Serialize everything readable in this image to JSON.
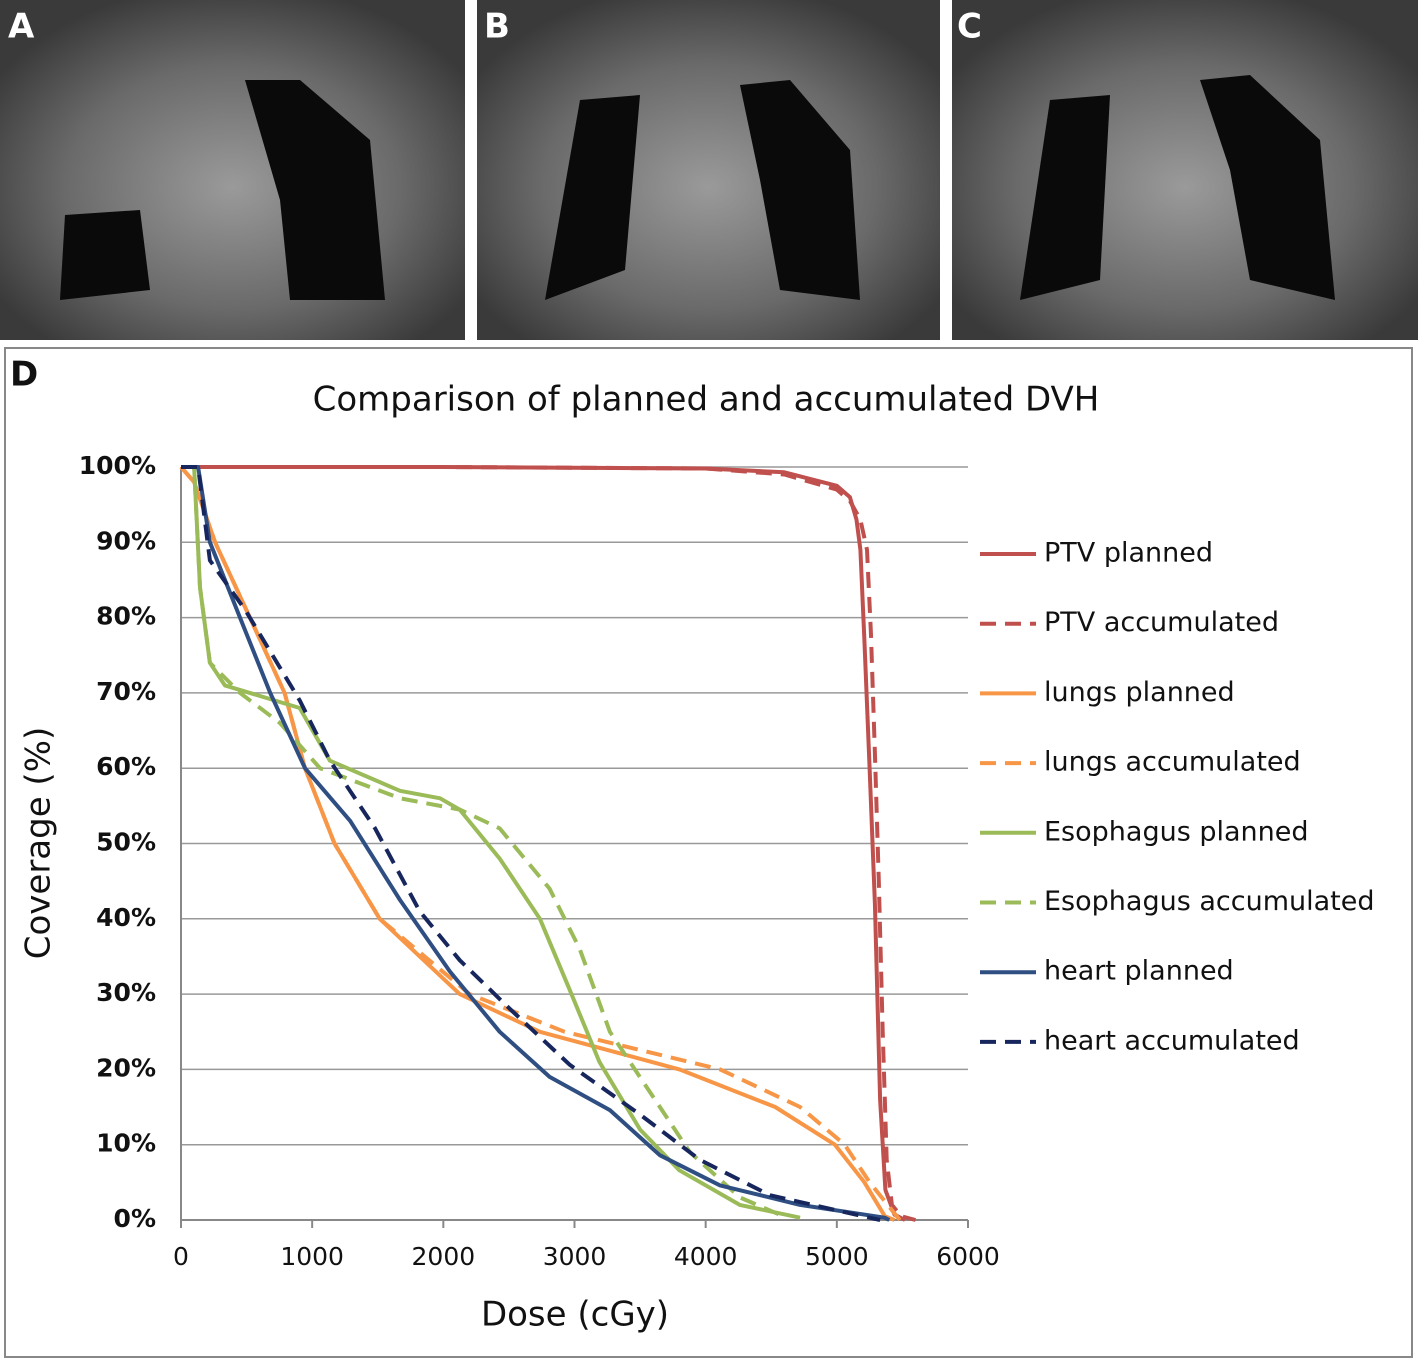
{
  "panel_labels": [
    "A",
    "B",
    "C",
    "D"
  ],
  "chart_data": {
    "type": "line",
    "title": "Comparison of planned and accumulated DVH",
    "x_label": "Dose (cGy)",
    "y_label": "Coverage (%)",
    "xlim": [
      0,
      6000
    ],
    "xticks": [
      0,
      1000,
      2000,
      3000,
      4000,
      5000,
      6000
    ],
    "ylim": [
      0,
      100
    ],
    "yticks": [
      {
        "value": 0,
        "label": "0%"
      },
      {
        "value": 10,
        "label": "10%"
      },
      {
        "value": 20,
        "label": "20%"
      },
      {
        "value": 30,
        "label": "30%"
      },
      {
        "value": 40,
        "label": "40%"
      },
      {
        "value": 50,
        "label": "50%"
      },
      {
        "value": 60,
        "label": "60%"
      },
      {
        "value": 70,
        "label": "70%"
      },
      {
        "value": 80,
        "label": "80%"
      },
      {
        "value": 90,
        "label": "90%"
      },
      {
        "value": 100,
        "label": "100%"
      }
    ],
    "grid": true,
    "legend": "right",
    "series": [
      {
        "name": "PTV planned",
        "color": "#c0504d",
        "dashed": false,
        "x": [
          0,
          2000,
          4000,
          4600,
          5000,
          5100,
          5150,
          5180,
          5210,
          5250,
          5290,
          5330,
          5370,
          5440,
          5520
        ],
        "values": [
          100,
          100,
          99.8,
          99.3,
          97.5,
          96,
          93,
          89,
          77,
          60,
          42,
          16,
          4,
          0.7,
          0
        ]
      },
      {
        "name": "PTV accumulated",
        "color": "#c0504d",
        "dashed": true,
        "x": [
          0,
          2000,
          4000,
          4600,
          5000,
          5100,
          5180,
          5230,
          5260,
          5290,
          5320,
          5350,
          5380,
          5420,
          5490,
          5600
        ],
        "values": [
          100,
          100,
          99.8,
          99,
          97,
          95.5,
          93,
          89,
          78,
          62,
          45,
          25,
          8,
          2,
          0.5,
          0
        ]
      },
      {
        "name": "lungs planned",
        "color": "#f79646",
        "dashed": false,
        "x": [
          0,
          100,
          260,
          525,
          790,
          945,
          1170,
          1515,
          2125,
          2736,
          3800,
          4530,
          4985,
          5210,
          5366,
          5440
        ],
        "values": [
          100,
          98,
          90,
          80,
          70,
          60,
          50,
          40,
          30,
          25,
          20,
          15,
          10,
          5,
          0.5,
          0
        ]
      },
      {
        "name": "lungs accumulated",
        "color": "#f79646",
        "dashed": true,
        "x": [
          0,
          100,
          260,
          525,
          790,
          945,
          1170,
          1515,
          2200,
          2925,
          4110,
          4720,
          5060,
          5250,
          5480
        ],
        "values": [
          100,
          98,
          90,
          80,
          70,
          60,
          50,
          40,
          30,
          25,
          20,
          15,
          10,
          5,
          0
        ]
      },
      {
        "name": "Esophagus planned",
        "color": "#9bbb59",
        "dashed": false,
        "x": [
          0,
          100,
          145,
          220,
          335,
          905,
          1135,
          1670,
          1975,
          2125,
          2430,
          2736,
          2965,
          3190,
          3500,
          3800,
          4260,
          4720
        ],
        "values": [
          100,
          100,
          84,
          74,
          71,
          68,
          61,
          57,
          56,
          54.5,
          48,
          40,
          30.5,
          21,
          12,
          6.6,
          2,
          0.3
        ]
      },
      {
        "name": "Esophagus accumulated",
        "color": "#9bbb59",
        "dashed": true,
        "x": [
          0,
          100,
          145,
          220,
          450,
          755,
          1060,
          1670,
          2125,
          2430,
          2810,
          3040,
          3270,
          3575,
          3880,
          4260,
          4565
        ],
        "values": [
          100,
          100,
          84,
          74,
          70,
          66,
          60,
          56,
          54.5,
          52,
          44,
          36,
          25,
          17,
          9,
          3,
          0.7
        ]
      },
      {
        "name": "heart planned",
        "color": "#2f4f82",
        "dashed": false,
        "x": [
          0,
          130,
          220,
          450,
          680,
          945,
          1290,
          1670,
          2050,
          2430,
          2810,
          3270,
          3650,
          4110,
          4720,
          5366,
          5400
        ],
        "values": [
          100,
          100,
          90,
          80,
          70,
          60,
          53,
          42.5,
          33,
          25,
          19,
          14.6,
          8.6,
          4.6,
          2,
          0.3,
          0
        ]
      },
      {
        "name": "heart accumulated",
        "color": "#17275e",
        "dashed": true,
        "x": [
          0,
          130,
          220,
          490,
          905,
          1135,
          1480,
          1820,
          2125,
          2510,
          2965,
          3500,
          3955,
          4490,
          5250,
          5330
        ],
        "values": [
          100,
          100,
          87.6,
          81,
          69,
          61,
          52,
          41,
          34.5,
          28,
          20.6,
          14,
          8,
          3.3,
          0.3,
          0
        ]
      }
    ]
  }
}
